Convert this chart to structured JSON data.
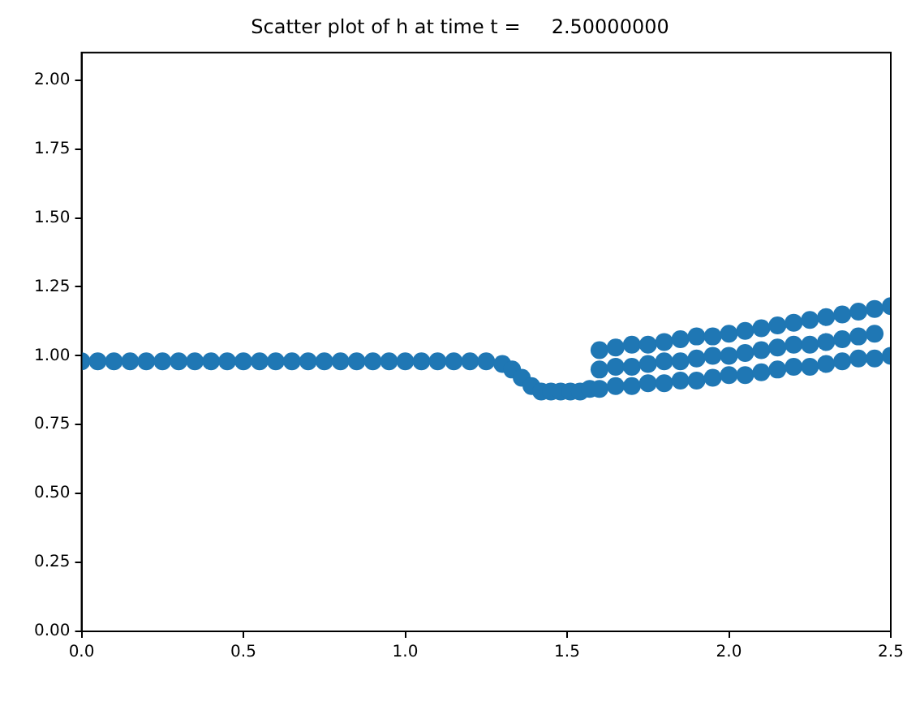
{
  "chart_data": {
    "type": "scatter",
    "title": "Scatter plot of h at time t =     2.50000000",
    "x": [
      0,
      0.05,
      0.1,
      0.15,
      0.2,
      0.25,
      0.3,
      0.35,
      0.4,
      0.45,
      0.5,
      0.55,
      0.6,
      0.65,
      0.7,
      0.75,
      0.8,
      0.85,
      0.9,
      0.95,
      1.0,
      1.05,
      1.1,
      1.15,
      1.2,
      1.25,
      1.3,
      1.33,
      1.36,
      1.39,
      1.42,
      1.45,
      1.48,
      1.51,
      1.54,
      1.57,
      1.6,
      1.65,
      1.7,
      1.75,
      1.8,
      1.85,
      1.9,
      1.95,
      2.0,
      2.05,
      2.1,
      2.15,
      2.2,
      2.25,
      2.3,
      2.35,
      2.4,
      2.45,
      2.5,
      1.6,
      1.65,
      1.7,
      1.75,
      1.8,
      1.85,
      1.9,
      1.95,
      2.0,
      2.05,
      2.1,
      2.15,
      2.2,
      2.25,
      2.3,
      2.35,
      2.4,
      2.45,
      2.5,
      1.6,
      1.65,
      1.7,
      1.75,
      1.8,
      1.85,
      1.9,
      1.95,
      2.0,
      2.05,
      2.1,
      2.15,
      2.2,
      2.25,
      2.3,
      2.35,
      2.4,
      2.45
    ],
    "series": [
      {
        "color": "#1f77b4",
        "values": [
          0.98,
          0.98,
          0.98,
          0.98,
          0.98,
          0.98,
          0.98,
          0.98,
          0.98,
          0.98,
          0.98,
          0.98,
          0.98,
          0.98,
          0.98,
          0.98,
          0.98,
          0.98,
          0.98,
          0.98,
          0.98,
          0.98,
          0.98,
          0.98,
          0.98,
          0.98,
          0.97,
          0.95,
          0.92,
          0.89,
          0.87,
          0.87,
          0.87,
          0.87,
          0.87,
          0.88,
          0.88,
          0.89,
          0.89,
          0.9,
          0.9,
          0.91,
          0.91,
          0.92,
          0.93,
          0.93,
          0.94,
          0.95,
          0.96,
          0.96,
          0.97,
          0.98,
          0.99,
          0.99,
          1.0,
          1.02,
          1.03,
          1.04,
          1.04,
          1.05,
          1.06,
          1.07,
          1.07,
          1.08,
          1.09,
          1.1,
          1.11,
          1.12,
          1.13,
          1.14,
          1.15,
          1.16,
          1.17,
          1.18,
          0.95,
          0.96,
          0.96,
          0.97,
          0.98,
          0.98,
          0.99,
          1.0,
          1.0,
          1.01,
          1.02,
          1.03,
          1.04,
          1.04,
          1.05,
          1.06,
          1.07,
          1.08
        ]
      }
    ],
    "xlim": [
      0,
      2.5
    ],
    "xticks": [
      {
        "value": 0,
        "label": "0.0"
      },
      {
        "value": 0.5,
        "label": "0.5"
      },
      {
        "value": 1,
        "label": "1.0"
      },
      {
        "value": 1.5,
        "label": "1.5"
      },
      {
        "value": 2,
        "label": "2.0"
      },
      {
        "value": 2.5,
        "label": "2.5"
      }
    ],
    "ylim": [
      0,
      2.1
    ],
    "yticks": [
      {
        "value": 0,
        "label": "0.00"
      },
      {
        "value": 0.25,
        "label": "0.25"
      },
      {
        "value": 0.5,
        "label": "0.50"
      },
      {
        "value": 0.75,
        "label": "0.75"
      },
      {
        "value": 1,
        "label": "1.00"
      },
      {
        "value": 1.25,
        "label": "1.25"
      },
      {
        "value": 1.5,
        "label": "1.50"
      },
      {
        "value": 1.75,
        "label": "1.75"
      },
      {
        "value": 2,
        "label": "2.00"
      }
    ],
    "grid": false,
    "legend": false,
    "marker": "circle"
  }
}
